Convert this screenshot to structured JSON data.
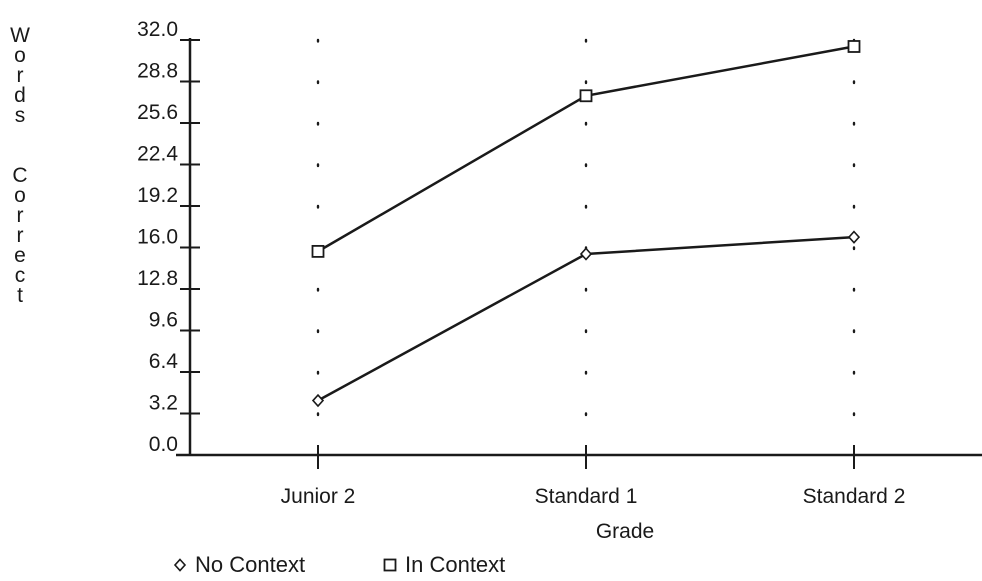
{
  "chart_data": {
    "type": "line",
    "categories": [
      "Junior 2",
      "Standard 1",
      "Standard 2"
    ],
    "series": [
      {
        "name": "No Context",
        "marker": "diamond",
        "values": [
          4.2,
          15.5,
          16.8
        ]
      },
      {
        "name": "In Context",
        "marker": "square",
        "values": [
          15.7,
          27.7,
          31.5
        ]
      }
    ],
    "xlabel": "Grade",
    "ylabel": "Words Correct",
    "ylim": [
      0,
      32
    ],
    "yticks": [
      "0.0",
      "3.2",
      "6.4",
      "9.6",
      "12.8",
      "16.0",
      "19.2",
      "22.4",
      "25.6",
      "28.8",
      "32.0"
    ],
    "grid": "dotted vertical",
    "legend_position": "bottom-left",
    "line_color": "#1a1a1a"
  }
}
